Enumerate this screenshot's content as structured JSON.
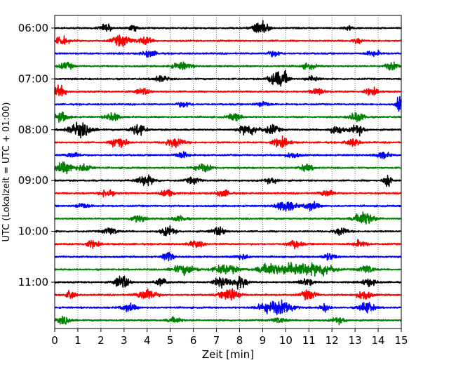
{
  "chart_data": {
    "type": "line",
    "subtype": "helicorder",
    "xlabel": "Zeit  [min]",
    "ylabel": "UTC (Lokalzeit = UTC + 01:00)",
    "xlim": [
      0,
      15
    ],
    "x_ticks": [
      "0",
      "1",
      "2",
      "3",
      "4",
      "5",
      "6",
      "7",
      "8",
      "9",
      "10",
      "11",
      "12",
      "13",
      "14",
      "15"
    ],
    "y_ticks": [
      "06:00",
      "07:00",
      "08:00",
      "09:00",
      "10:00",
      "11:00"
    ],
    "grid": "vertical-dotted",
    "trace_colors": [
      "#000000",
      "#ff0000",
      "#0000ff",
      "#008000"
    ],
    "traces": [
      {
        "start": "06:00",
        "color": "#000000",
        "events": [
          [
            2.2,
            0.25,
            0.8
          ],
          [
            3.4,
            0.2,
            0.6
          ],
          [
            8.9,
            0.3,
            1.8
          ],
          [
            12.7,
            0.2,
            0.5
          ]
        ]
      },
      {
        "start": "06:15",
        "color": "#ff0000",
        "events": [
          [
            0.3,
            0.3,
            0.9
          ],
          [
            2.9,
            0.4,
            1.2
          ],
          [
            3.9,
            0.3,
            0.8
          ],
          [
            13.1,
            0.2,
            0.6
          ]
        ]
      },
      {
        "start": "06:30",
        "color": "#0000ff",
        "events": [
          [
            4.1,
            0.3,
            0.7
          ],
          [
            9.5,
            0.3,
            0.6
          ],
          [
            13.8,
            0.3,
            0.6
          ]
        ]
      },
      {
        "start": "06:45",
        "color": "#008000",
        "events": [
          [
            0.5,
            0.3,
            0.7
          ],
          [
            5.5,
            0.4,
            0.8
          ],
          [
            11.0,
            0.3,
            0.6
          ],
          [
            14.6,
            0.3,
            0.8
          ]
        ]
      },
      {
        "start": "07:00",
        "color": "#000000",
        "events": [
          [
            4.6,
            0.3,
            0.7
          ],
          [
            9.6,
            0.3,
            2.0
          ],
          [
            9.95,
            0.2,
            1.2
          ],
          [
            11.2,
            0.3,
            0.6
          ]
        ]
      },
      {
        "start": "07:15",
        "color": "#ff0000",
        "events": [
          [
            0.2,
            0.3,
            1.2
          ],
          [
            3.8,
            0.3,
            0.7
          ],
          [
            11.4,
            0.3,
            0.7
          ],
          [
            13.7,
            0.3,
            0.7
          ]
        ]
      },
      {
        "start": "07:30",
        "color": "#0000ff",
        "events": [
          [
            5.6,
            0.3,
            0.6
          ],
          [
            9.0,
            0.3,
            0.6
          ],
          [
            14.95,
            0.15,
            2.0
          ]
        ]
      },
      {
        "start": "07:45",
        "color": "#008000",
        "events": [
          [
            0.3,
            0.3,
            1.0
          ],
          [
            2.5,
            0.3,
            0.9
          ],
          [
            7.8,
            0.3,
            0.8
          ],
          [
            13.1,
            0.3,
            1.2
          ]
        ]
      },
      {
        "start": "08:00",
        "color": "#000000",
        "events": [
          [
            1.1,
            0.5,
            1.5
          ],
          [
            3.6,
            0.3,
            1.3
          ],
          [
            8.4,
            0.4,
            1.2
          ],
          [
            9.4,
            0.3,
            1.0
          ],
          [
            12.2,
            0.3,
            0.9
          ],
          [
            13.1,
            0.3,
            1.0
          ]
        ]
      },
      {
        "start": "08:15",
        "color": "#ff0000",
        "events": [
          [
            2.8,
            0.3,
            1.6
          ],
          [
            5.2,
            0.4,
            1.0
          ],
          [
            9.8,
            0.4,
            0.9
          ],
          [
            12.9,
            0.3,
            0.8
          ]
        ]
      },
      {
        "start": "08:30",
        "color": "#0000ff",
        "events": [
          [
            0.8,
            0.3,
            0.6
          ],
          [
            5.5,
            0.3,
            0.7
          ],
          [
            10.3,
            0.3,
            0.6
          ],
          [
            14.2,
            0.3,
            0.7
          ]
        ]
      },
      {
        "start": "08:45",
        "color": "#008000",
        "events": [
          [
            0.4,
            0.4,
            1.2
          ],
          [
            1.3,
            0.3,
            0.9
          ],
          [
            6.4,
            0.4,
            0.8
          ],
          [
            10.9,
            0.3,
            0.7
          ]
        ]
      },
      {
        "start": "09:00",
        "color": "#000000",
        "events": [
          [
            3.9,
            0.4,
            1.1
          ],
          [
            6.0,
            0.3,
            0.7
          ],
          [
            9.4,
            0.3,
            0.6
          ],
          [
            14.4,
            0.15,
            2.2
          ]
        ]
      },
      {
        "start": "09:15",
        "color": "#ff0000",
        "events": [
          [
            2.3,
            0.3,
            0.9
          ],
          [
            4.9,
            0.3,
            0.9
          ],
          [
            7.3,
            0.3,
            0.7
          ],
          [
            11.8,
            0.3,
            0.8
          ]
        ]
      },
      {
        "start": "09:30",
        "color": "#0000ff",
        "events": [
          [
            1.2,
            0.3,
            0.6
          ],
          [
            10.0,
            0.4,
            1.2
          ],
          [
            11.1,
            0.3,
            1.0
          ]
        ]
      },
      {
        "start": "09:45",
        "color": "#008000",
        "events": [
          [
            3.6,
            0.3,
            0.8
          ],
          [
            5.4,
            0.3,
            0.7
          ],
          [
            13.4,
            0.4,
            1.5
          ]
        ]
      },
      {
        "start": "10:00",
        "color": "#000000",
        "events": [
          [
            2.4,
            0.3,
            0.8
          ],
          [
            4.9,
            0.3,
            1.0
          ],
          [
            7.1,
            0.3,
            0.9
          ],
          [
            12.4,
            0.3,
            0.8
          ]
        ]
      },
      {
        "start": "10:15",
        "color": "#ff0000",
        "events": [
          [
            1.6,
            0.3,
            0.7
          ],
          [
            6.1,
            0.3,
            0.7
          ],
          [
            10.4,
            0.3,
            0.8
          ],
          [
            13.2,
            0.3,
            0.7
          ]
        ]
      },
      {
        "start": "10:30",
        "color": "#0000ff",
        "events": [
          [
            4.9,
            0.2,
            1.2
          ],
          [
            8.1,
            0.3,
            0.6
          ],
          [
            11.9,
            0.3,
            0.7
          ]
        ]
      },
      {
        "start": "10:45",
        "color": "#008000",
        "events": [
          [
            5.6,
            0.5,
            1.0
          ],
          [
            7.4,
            0.5,
            1.1
          ],
          [
            9.3,
            0.5,
            1.2
          ],
          [
            10.5,
            0.6,
            1.7
          ],
          [
            11.6,
            0.5,
            1.3
          ],
          [
            13.5,
            0.3,
            0.9
          ]
        ]
      },
      {
        "start": "11:00",
        "color": "#000000",
        "events": [
          [
            2.9,
            0.3,
            1.5
          ],
          [
            4.6,
            0.3,
            0.8
          ],
          [
            7.2,
            0.3,
            1.3
          ],
          [
            8.0,
            0.3,
            1.5
          ],
          [
            10.9,
            0.3,
            0.8
          ],
          [
            13.6,
            0.3,
            0.8
          ]
        ]
      },
      {
        "start": "11:15",
        "color": "#ff0000",
        "events": [
          [
            0.7,
            0.2,
            1.0
          ],
          [
            4.0,
            0.4,
            1.3
          ],
          [
            7.6,
            0.4,
            1.5
          ],
          [
            11.0,
            0.3,
            1.1
          ],
          [
            13.4,
            0.3,
            1.1
          ]
        ]
      },
      {
        "start": "11:30",
        "color": "#0000ff",
        "events": [
          [
            3.2,
            0.3,
            0.9
          ],
          [
            9.3,
            0.5,
            1.3
          ],
          [
            10.0,
            0.4,
            1.2
          ],
          [
            11.7,
            0.2,
            0.8
          ],
          [
            13.5,
            0.3,
            1.4
          ]
        ]
      },
      {
        "start": "11:45",
        "color": "#008000",
        "events": [
          [
            0.4,
            0.3,
            0.8
          ],
          [
            5.2,
            0.3,
            0.6
          ],
          [
            9.7,
            0.3,
            0.6
          ],
          [
            12.3,
            0.3,
            0.6
          ]
        ]
      }
    ]
  }
}
